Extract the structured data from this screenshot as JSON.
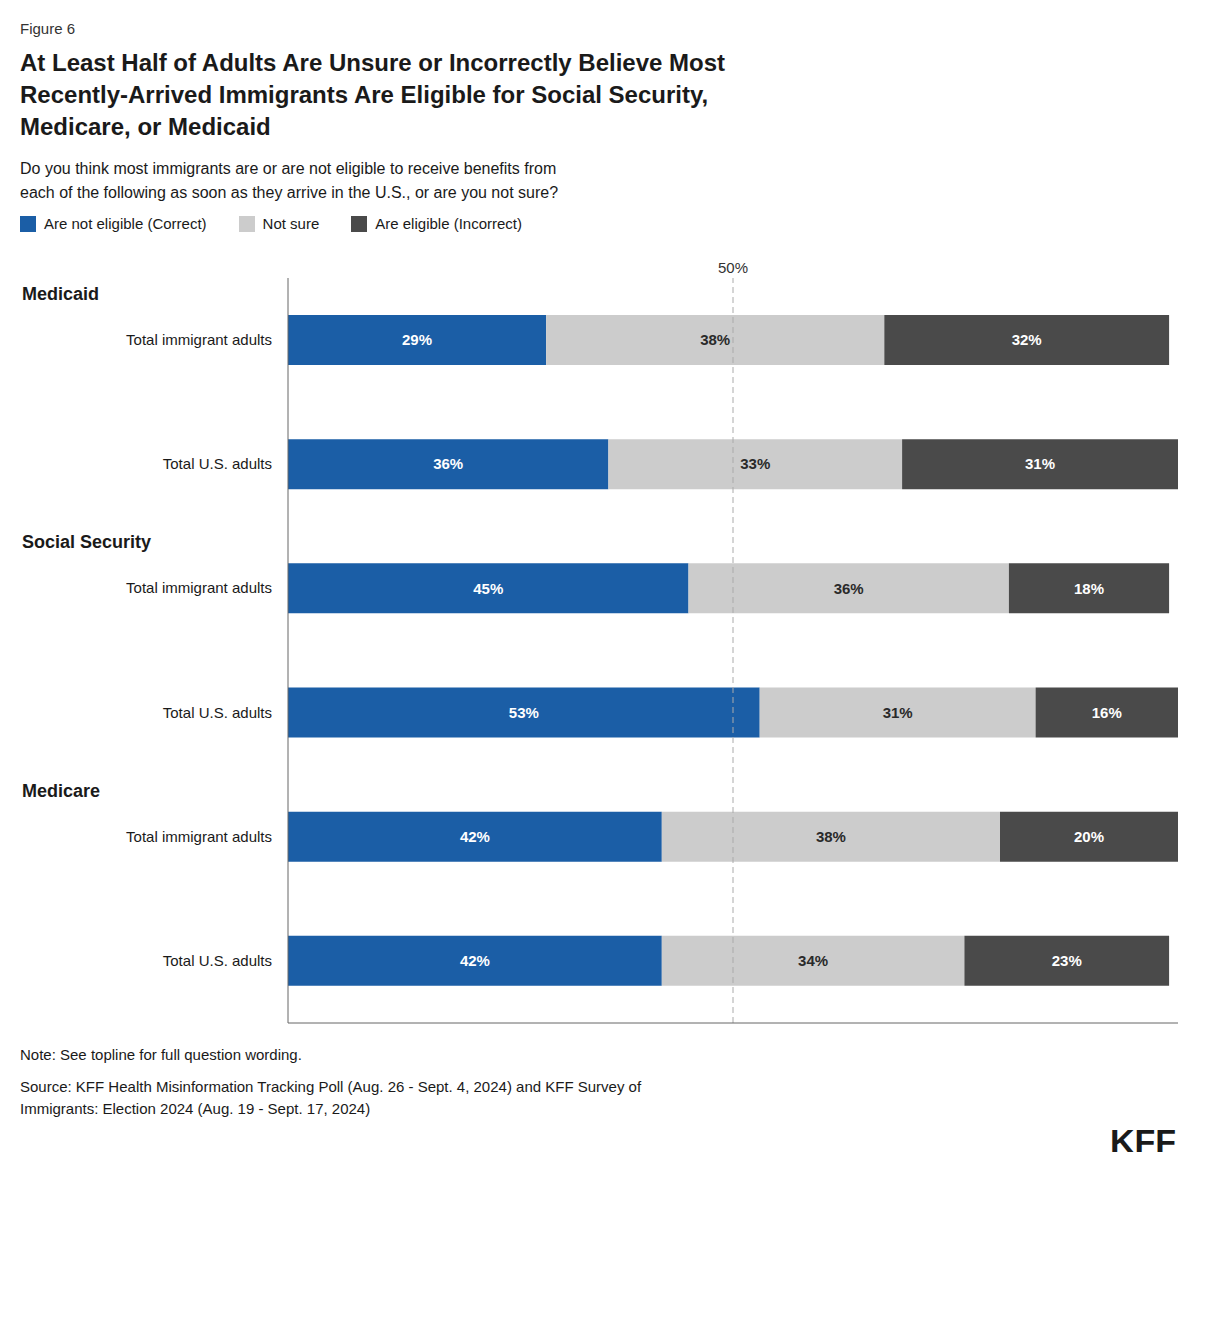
{
  "chart_data": {
    "type": "bar",
    "orientation": "horizontal",
    "stacked": true,
    "data_labels": true,
    "grid": false,
    "legend": "top",
    "tick_labels": false,
    "title": "At Least Half of Adults Are Unsure or Incorrectly Believe Most\nRecently-Arrived Immigrants Are Eligible for Social Security,\nMedicare, or Medicaid",
    "subtitle": "Do you think most immigrants are or are not eligible to receive benefits from\neach of the following as soon as they arrive in the U.S., or are you not sure?",
    "categories": [
      "Total immigrant adults",
      "Total U.S. adults",
      "Total immigrant adults",
      "Total U.S. adults",
      "Total immigrant adults",
      "Total U.S. adults"
    ],
    "series": [
      {
        "name": "Are not eligible (Correct)",
        "color": "#1B5EA6",
        "values": [
          29,
          36,
          45,
          53,
          42,
          42
        ],
        "value_labels": [
          "29%",
          "36%",
          "45%",
          "53%",
          "42%",
          "42%"
        ]
      },
      {
        "name": "Not sure",
        "color": "#CCCCCC",
        "values": [
          38,
          33,
          36,
          31,
          38,
          34
        ],
        "value_labels": [
          "38%",
          "33%",
          "36%",
          "31%",
          "38%",
          "34%"
        ]
      },
      {
        "name": "Are eligible (Incorrect)",
        "color": "#4A4A4A",
        "values": [
          32,
          31,
          18,
          16,
          20,
          23
        ],
        "value_labels": [
          "32%",
          "31%",
          "18%",
          "16%",
          "20%",
          "23%"
        ]
      }
    ],
    "xlim": [
      0,
      100
    ],
    "annotations": [
      "Figure 6",
      {
        "text": "Medicaid",
        "category": 0
      },
      {
        "text": "Social Security",
        "category": 2
      },
      {
        "text": "Medicare",
        "category": 4
      },
      {
        "text": "50%",
        "x": 50
      },
      "Note: See topline for full question wording.",
      "Source: KFF Health Misinformation Tracking Poll (Aug. 26 - Sept. 4, 2024) and KFF Survey of\nImmigrants: Election 2024 (Aug. 19 - Sept. 17, 2024)",
      "KFF"
    ]
  }
}
